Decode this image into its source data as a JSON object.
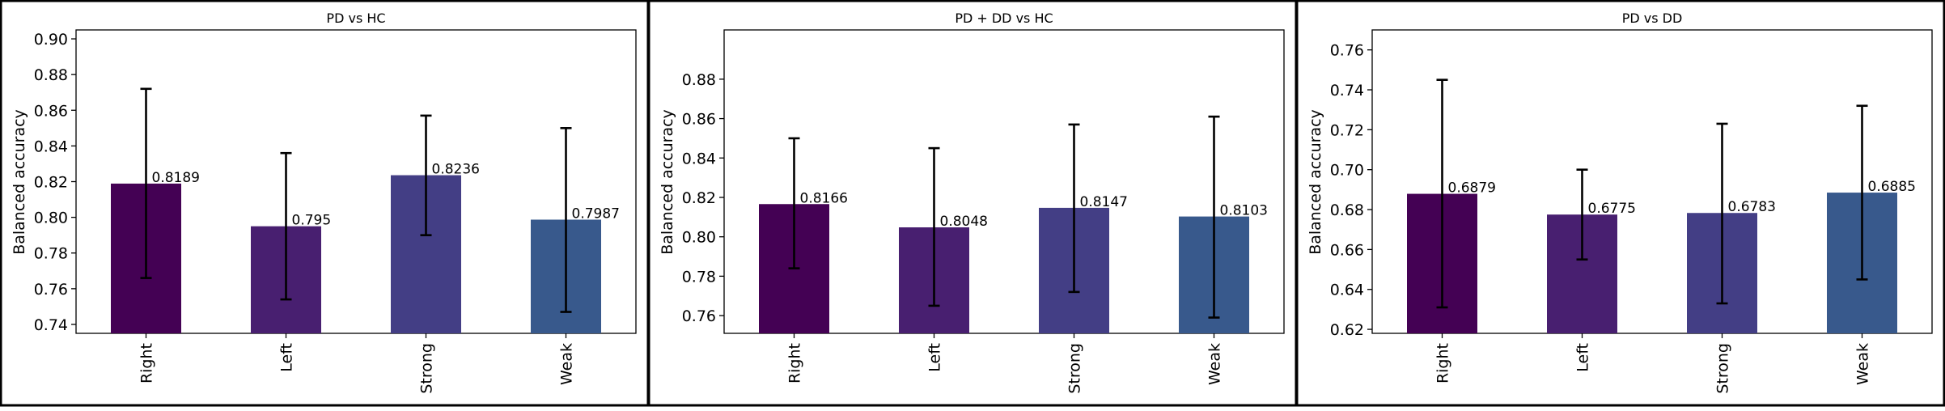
{
  "bar_colors": [
    "#440154",
    "#481f70",
    "#433e85",
    "#38598c"
  ],
  "chart_data": [
    {
      "type": "bar",
      "title": "PD vs HC",
      "xlabel": "",
      "ylabel": "Balanced accuracy",
      "categories": [
        "Right",
        "Left",
        "Strong",
        "Weak"
      ],
      "values": [
        0.8189,
        0.795,
        0.8236,
        0.7987
      ],
      "value_labels": [
        "0.8189",
        "0.795",
        "0.8236",
        "0.7987"
      ],
      "error_low": [
        0.766,
        0.754,
        0.79,
        0.747
      ],
      "error_high": [
        0.872,
        0.836,
        0.857,
        0.85
      ],
      "ylim": [
        0.735,
        0.905
      ],
      "yticks": [
        0.74,
        0.76,
        0.78,
        0.8,
        0.82,
        0.84,
        0.86,
        0.88,
        0.9
      ],
      "ytick_labels": [
        "0.74",
        "0.76",
        "0.78",
        "0.80",
        "0.82",
        "0.84",
        "0.86",
        "0.88",
        "0.90"
      ],
      "grid": false
    },
    {
      "type": "bar",
      "title": "PD + DD vs HC",
      "xlabel": "",
      "ylabel": "Balanced accuracy",
      "categories": [
        "Right",
        "Left",
        "Strong",
        "Weak"
      ],
      "values": [
        0.8166,
        0.8048,
        0.8147,
        0.8103
      ],
      "value_labels": [
        "0.8166",
        "0.8048",
        "0.8147",
        "0.8103"
      ],
      "error_low": [
        0.784,
        0.765,
        0.772,
        0.759
      ],
      "error_high": [
        0.85,
        0.845,
        0.857,
        0.861
      ],
      "ylim": [
        0.751,
        0.905
      ],
      "yticks": [
        0.76,
        0.78,
        0.8,
        0.82,
        0.84,
        0.86,
        0.88
      ],
      "ytick_labels": [
        "0.76",
        "0.78",
        "0.80",
        "0.82",
        "0.84",
        "0.86",
        "0.88"
      ],
      "grid": false
    },
    {
      "type": "bar",
      "title": "PD vs DD",
      "xlabel": "",
      "ylabel": "Balanced accuracy",
      "categories": [
        "Right",
        "Left",
        "Strong",
        "Weak"
      ],
      "values": [
        0.6879,
        0.6775,
        0.6783,
        0.6885
      ],
      "value_labels": [
        "0.6879",
        "0.6775",
        "0.6783",
        "0.6885"
      ],
      "error_low": [
        0.631,
        0.655,
        0.633,
        0.645
      ],
      "error_high": [
        0.745,
        0.7,
        0.723,
        0.732
      ],
      "ylim": [
        0.618,
        0.77
      ],
      "yticks": [
        0.62,
        0.64,
        0.66,
        0.68,
        0.7,
        0.72,
        0.74,
        0.76
      ],
      "ytick_labels": [
        "0.62",
        "0.64",
        "0.66",
        "0.68",
        "0.70",
        "0.72",
        "0.74",
        "0.76"
      ],
      "grid": false
    }
  ]
}
